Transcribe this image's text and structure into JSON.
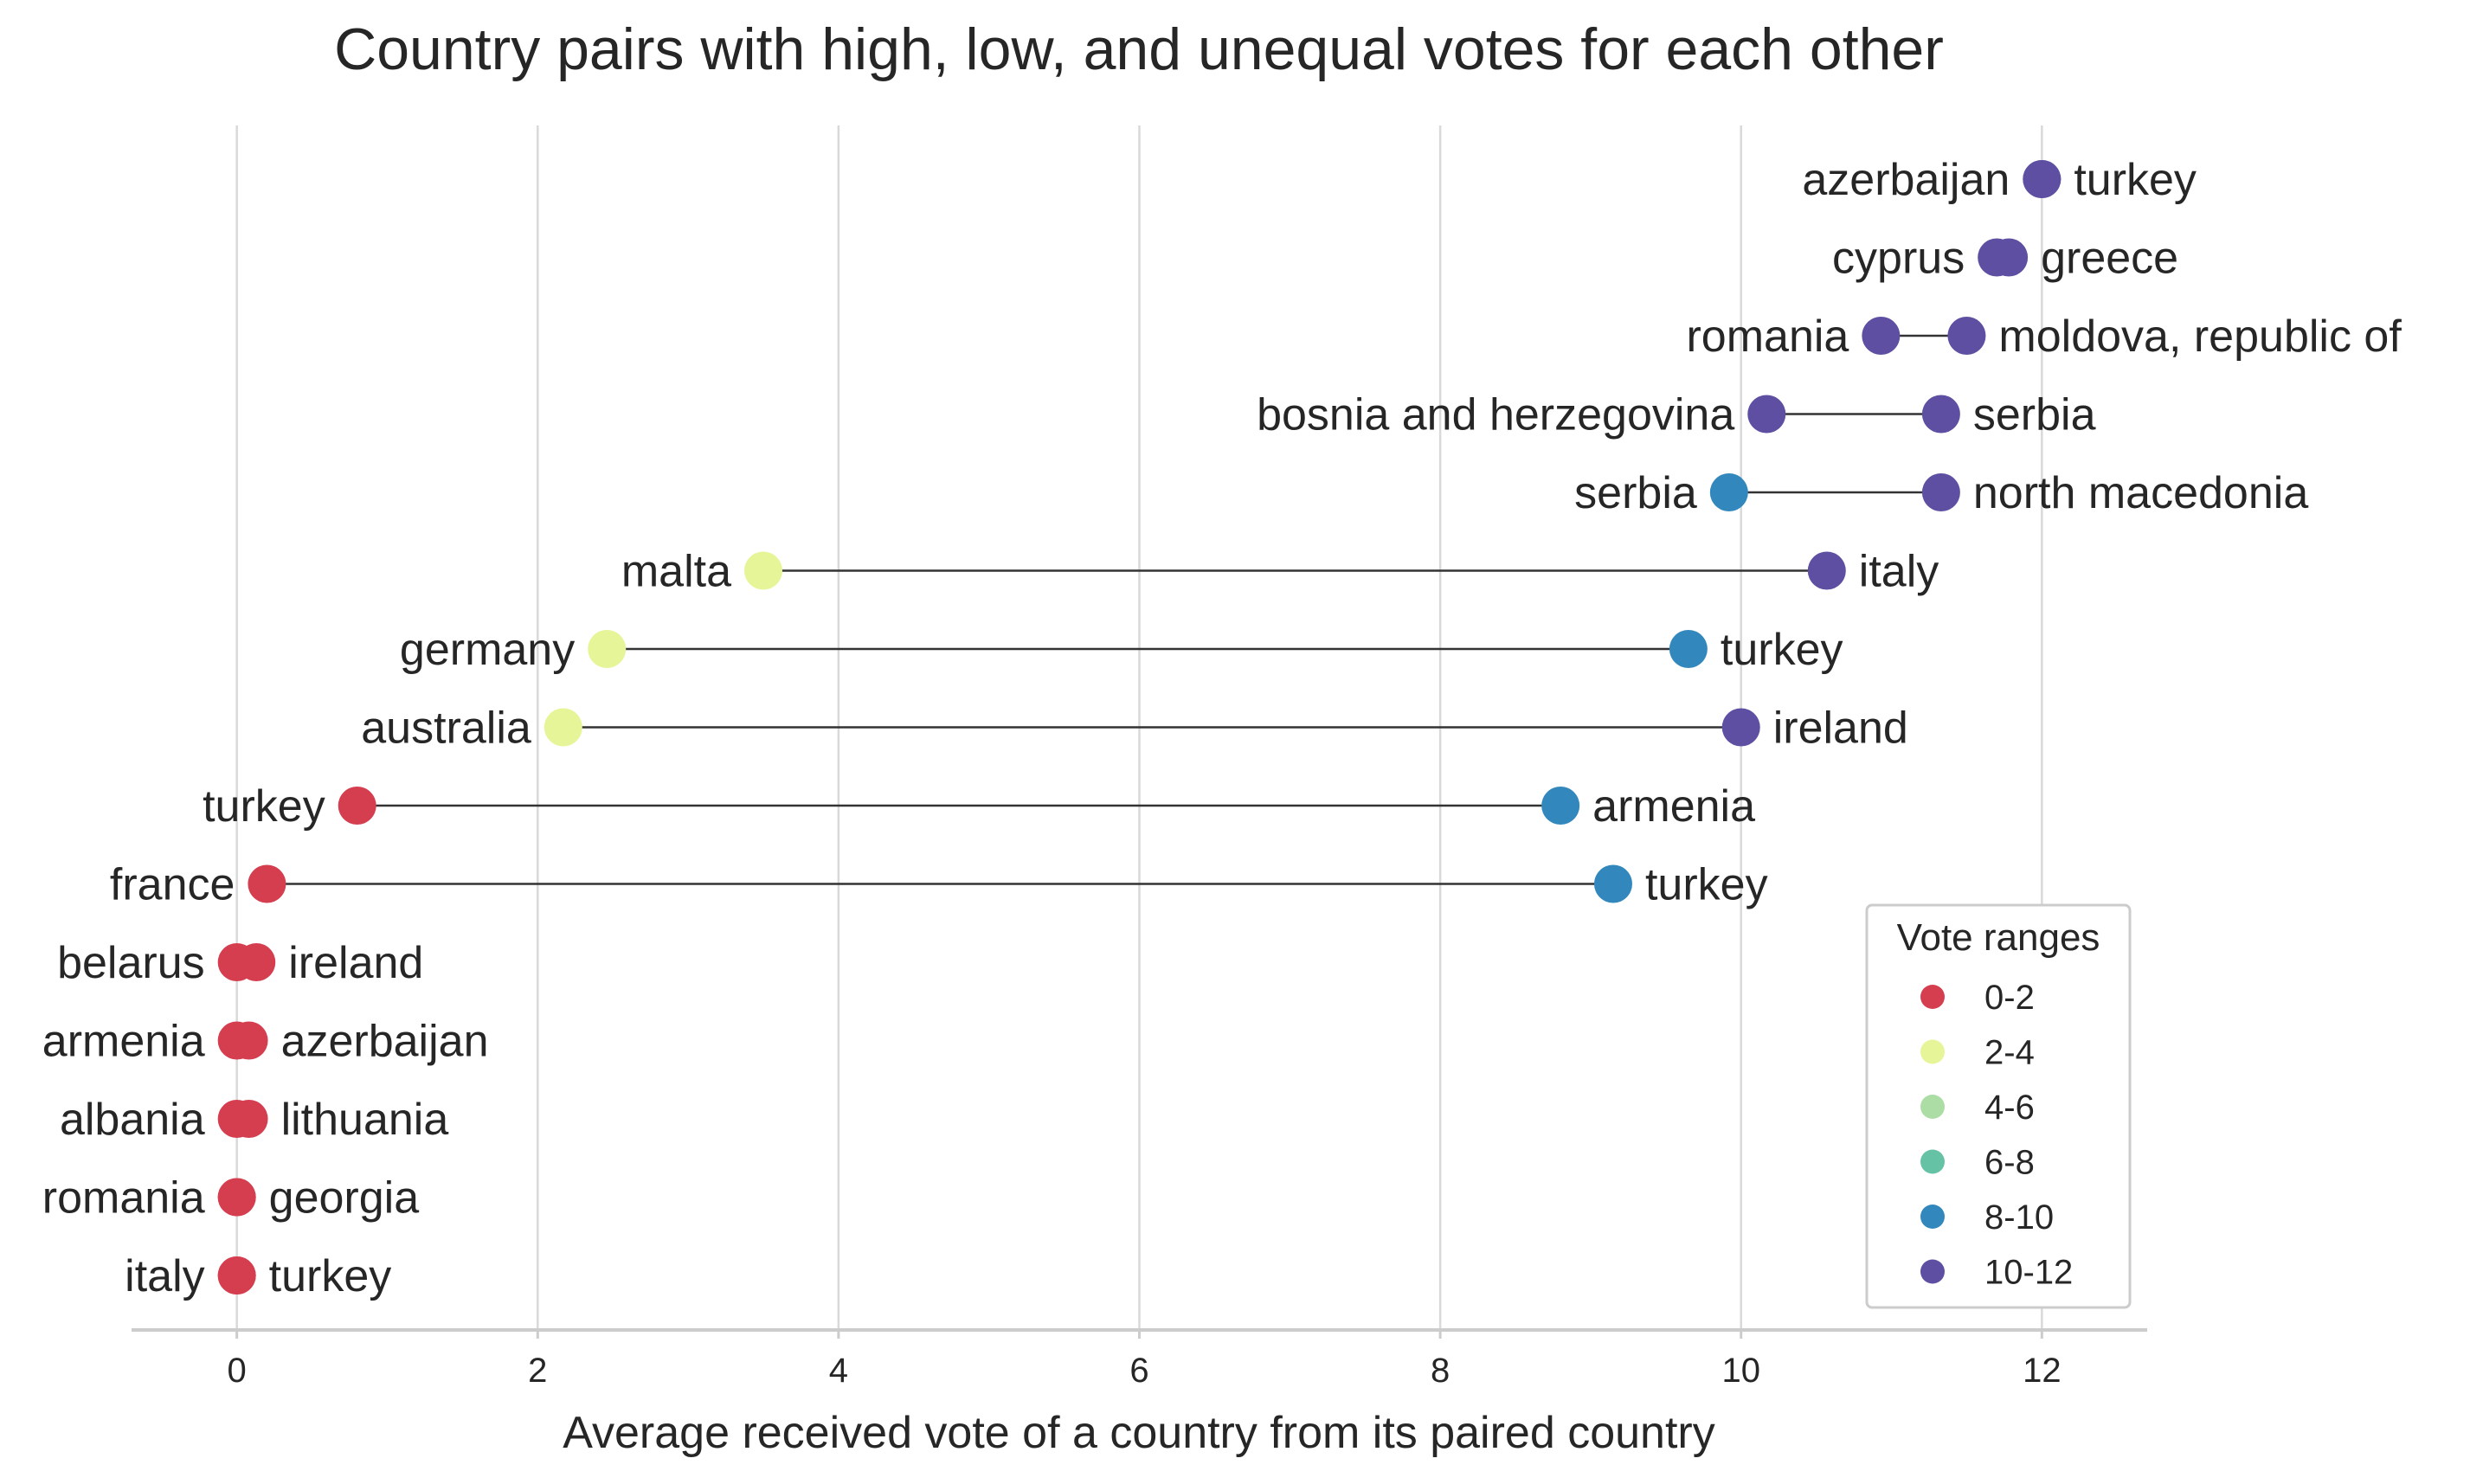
{
  "chart_data": {
    "type": "dumbbell",
    "title": "Country pairs with high, low, and unequal votes for each other",
    "xlabel": "Average received vote of a country from its paired country",
    "ylabel": "",
    "xlim": [
      -0.7,
      12.7
    ],
    "xticks": [
      0,
      2,
      4,
      6,
      8,
      10,
      12
    ],
    "grid": "vertical",
    "legend": {
      "title": "Vote ranges",
      "position": "bottom-right",
      "entries": [
        {
          "label": "0-2",
          "color": "#d53e4f"
        },
        {
          "label": "2-4",
          "color": "#e6f598"
        },
        {
          "label": "4-6",
          "color": "#abdda4"
        },
        {
          "label": "6-8",
          "color": "#66c2a5"
        },
        {
          "label": "8-10",
          "color": "#3288bd"
        },
        {
          "label": "10-12",
          "color": "#5e4fa2"
        }
      ]
    },
    "pairs": [
      {
        "left": "azerbaijan",
        "left_value": 12.0,
        "right": "turkey",
        "right_value": 12.0
      },
      {
        "left": "cyprus",
        "left_value": 11.7,
        "right": "greece",
        "right_value": 11.78
      },
      {
        "left": "romania",
        "left_value": 10.93,
        "right": "moldova, republic of",
        "right_value": 11.5
      },
      {
        "left": "bosnia and herzegovina",
        "left_value": 10.17,
        "right": "serbia",
        "right_value": 11.33
      },
      {
        "left": "serbia",
        "left_value": 9.92,
        "right": "north macedonia",
        "right_value": 11.33
      },
      {
        "left": "malta",
        "left_value": 3.5,
        "right": "italy",
        "right_value": 10.57
      },
      {
        "left": "germany",
        "left_value": 2.46,
        "right": "turkey",
        "right_value": 9.65
      },
      {
        "left": "australia",
        "left_value": 2.17,
        "right": "ireland",
        "right_value": 10.0
      },
      {
        "left": "turkey",
        "left_value": 0.8,
        "right": "armenia",
        "right_value": 8.8
      },
      {
        "left": "france",
        "left_value": 0.2,
        "right": "turkey",
        "right_value": 9.15
      },
      {
        "left": "belarus",
        "left_value": 0.0,
        "right": "ireland",
        "right_value": 0.13
      },
      {
        "left": "armenia",
        "left_value": 0.0,
        "right": "azerbaijan",
        "right_value": 0.08
      },
      {
        "left": "albania",
        "left_value": 0.0,
        "right": "lithuania",
        "right_value": 0.08
      },
      {
        "left": "romania",
        "left_value": 0.0,
        "right": "georgia",
        "right_value": 0.0
      },
      {
        "left": "italy",
        "left_value": 0.0,
        "right": "turkey",
        "right_value": 0.0
      }
    ]
  }
}
